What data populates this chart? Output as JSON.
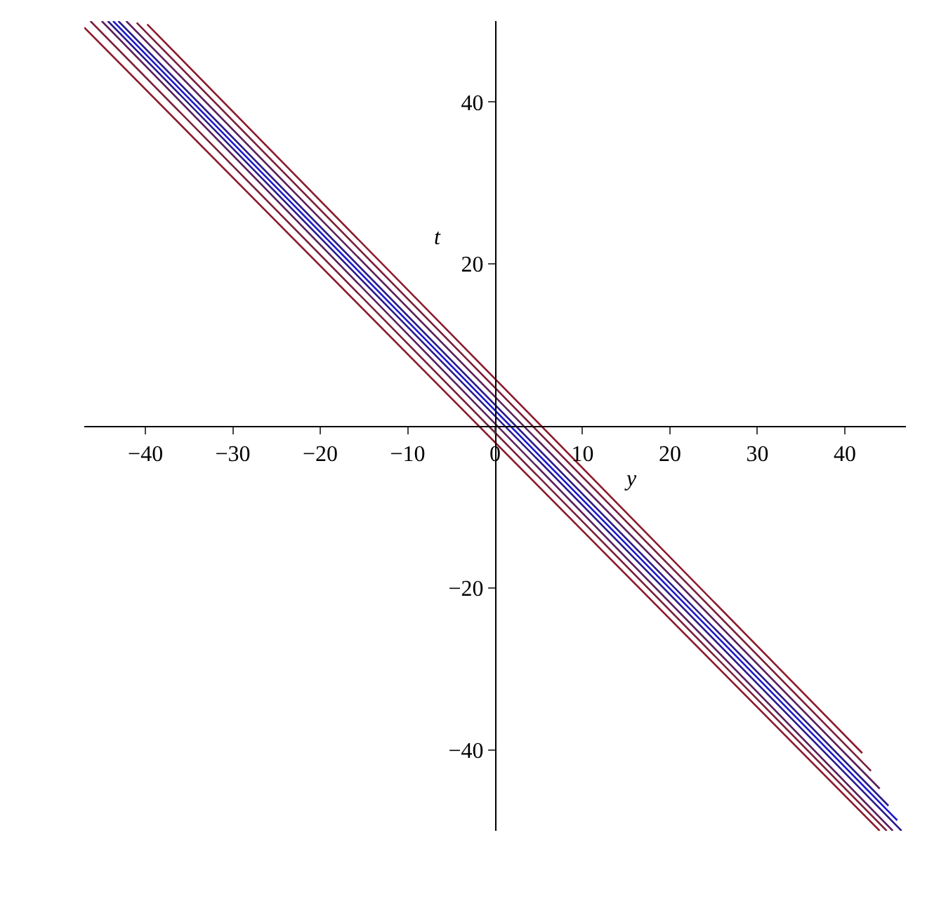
{
  "chart_data": {
    "type": "line",
    "xlabel": "y",
    "ylabel": "t",
    "xlim": [
      -47,
      47
    ],
    "ylim": [
      -50,
      50
    ],
    "xticks": [
      -40,
      -30,
      -20,
      -10,
      0,
      10,
      20,
      30,
      40
    ],
    "yticks": [
      -40,
      -20,
      20,
      40
    ],
    "legend": false,
    "marker": "none",
    "line_style": "solid",
    "series": [
      {
        "color": "#8b1a2b",
        "x": [
          -47,
          44
        ],
        "values": [
          49.2,
          -50
        ]
      },
      {
        "color": "#7a1f3a",
        "x": [
          -46.3,
          44.8
        ],
        "values": [
          50,
          -50
        ]
      },
      {
        "color": "#5a1f5a",
        "x": [
          -45,
          45.5
        ],
        "values": [
          50,
          -50
        ]
      },
      {
        "color": "#2a1a8a",
        "x": [
          -44.3,
          46.5
        ],
        "values": [
          50,
          -50
        ]
      },
      {
        "color": "#1a1acc",
        "x": [
          -43.7,
          46
        ],
        "values": [
          50,
          -48.7
        ]
      },
      {
        "color": "#2a1a8a",
        "x": [
          -43.1,
          45
        ],
        "values": [
          50,
          -46.9
        ]
      },
      {
        "color": "#5a1f5a",
        "x": [
          -42.2,
          44
        ],
        "values": [
          50,
          -44.8
        ]
      },
      {
        "color": "#7a1f3a",
        "x": [
          -41,
          43
        ],
        "values": [
          49.8,
          -42.6
        ]
      },
      {
        "color": "#8b1a2b",
        "x": [
          -39.8,
          42
        ],
        "values": [
          49.6,
          -40.4
        ]
      }
    ]
  }
}
